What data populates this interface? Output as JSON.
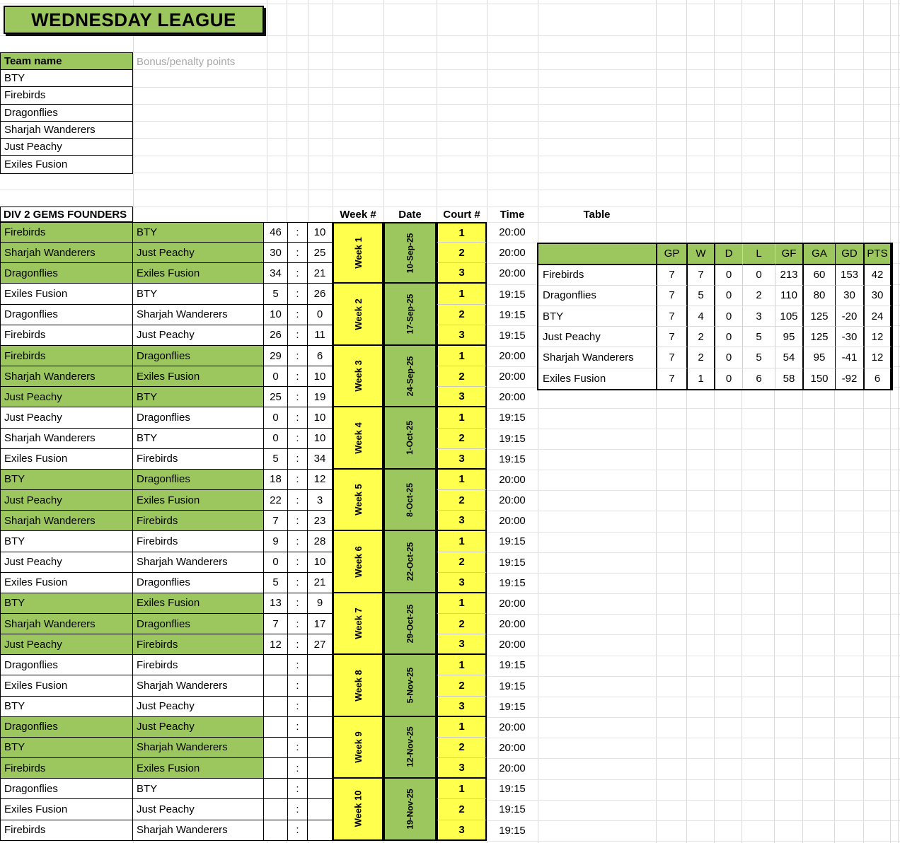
{
  "title": "WEDNESDAY LEAGUE",
  "teams_panel": {
    "header": "Team name",
    "bonus_label": "Bonus/penalty points",
    "teams": [
      "BTY",
      "Firebirds",
      "Dragonflies",
      "Sharjah Wanderers",
      "Just Peachy",
      "Exiles Fusion"
    ]
  },
  "division_header": "DIV 2 GEMS FOUNDERS",
  "schedule_headers": {
    "week": "Week #",
    "date": "Date",
    "court": "Court #",
    "time": "Time",
    "table": "Table"
  },
  "colon": ":",
  "weeks": [
    {
      "label": "Week 1",
      "date": "10-Sep-25",
      "green": true,
      "matches": [
        {
          "home": "Firebirds",
          "away": "BTY",
          "home_score": "46",
          "away_score": "10",
          "court": "1",
          "time": "20:00"
        },
        {
          "home": "Sharjah Wanderers",
          "away": "Just Peachy",
          "home_score": "30",
          "away_score": "25",
          "court": "2",
          "time": "20:00"
        },
        {
          "home": "Dragonflies",
          "away": "Exiles Fusion",
          "home_score": "34",
          "away_score": "21",
          "court": "3",
          "time": "20:00"
        }
      ]
    },
    {
      "label": "Week 2",
      "date": "17-Sep-25",
      "green": false,
      "matches": [
        {
          "home": "Exiles Fusion",
          "away": "BTY",
          "home_score": "5",
          "away_score": "26",
          "court": "1",
          "time": "19:15"
        },
        {
          "home": "Dragonflies",
          "away": "Sharjah Wanderers",
          "home_score": "10",
          "away_score": "0",
          "court": "2",
          "time": "19:15"
        },
        {
          "home": "Firebirds",
          "away": "Just Peachy",
          "home_score": "26",
          "away_score": "11",
          "court": "3",
          "time": "19:15"
        }
      ]
    },
    {
      "label": "Week 3",
      "date": "24-Sep-25",
      "green": true,
      "matches": [
        {
          "home": "Firebirds",
          "away": "Dragonflies",
          "home_score": "29",
          "away_score": "6",
          "court": "1",
          "time": "20:00"
        },
        {
          "home": "Sharjah Wanderers",
          "away": "Exiles Fusion",
          "home_score": "0",
          "away_score": "10",
          "court": "2",
          "time": "20:00"
        },
        {
          "home": "Just Peachy",
          "away": "BTY",
          "home_score": "25",
          "away_score": "19",
          "court": "3",
          "time": "20:00"
        }
      ]
    },
    {
      "label": "Week 4",
      "date": "1-Oct-25",
      "green": false,
      "matches": [
        {
          "home": "Just Peachy",
          "away": "Dragonflies",
          "home_score": "0",
          "away_score": "10",
          "court": "1",
          "time": "19:15"
        },
        {
          "home": "Sharjah Wanderers",
          "away": "BTY",
          "home_score": "0",
          "away_score": "10",
          "court": "2",
          "time": "19:15"
        },
        {
          "home": "Exiles Fusion",
          "away": "Firebirds",
          "home_score": "5",
          "away_score": "34",
          "court": "3",
          "time": "19:15"
        }
      ]
    },
    {
      "label": "Week 5",
      "date": "8-Oct-25",
      "green": true,
      "matches": [
        {
          "home": "BTY",
          "away": "Dragonflies",
          "home_score": "18",
          "away_score": "12",
          "court": "1",
          "time": "20:00"
        },
        {
          "home": "Just Peachy",
          "away": "Exiles Fusion",
          "home_score": "22",
          "away_score": "3",
          "court": "2",
          "time": "20:00"
        },
        {
          "home": "Sharjah Wanderers",
          "away": "Firebirds",
          "home_score": "7",
          "away_score": "23",
          "court": "3",
          "time": "20:00"
        }
      ]
    },
    {
      "label": "Week 6",
      "date": "22-Oct-25",
      "green": false,
      "matches": [
        {
          "home": "BTY",
          "away": "Firebirds",
          "home_score": "9",
          "away_score": "28",
          "court": "1",
          "time": "19:15"
        },
        {
          "home": "Just Peachy",
          "away": "Sharjah Wanderers",
          "home_score": "0",
          "away_score": "10",
          "court": "2",
          "time": "19:15"
        },
        {
          "home": "Exiles Fusion",
          "away": "Dragonflies",
          "home_score": "5",
          "away_score": "21",
          "court": "3",
          "time": "19:15"
        }
      ]
    },
    {
      "label": "Week 7",
      "date": "29-Oct-25",
      "green": true,
      "matches": [
        {
          "home": "BTY",
          "away": "Exiles Fusion",
          "home_score": "13",
          "away_score": "9",
          "court": "1",
          "time": "20:00"
        },
        {
          "home": "Sharjah Wanderers",
          "away": "Dragonflies",
          "home_score": "7",
          "away_score": "17",
          "court": "2",
          "time": "20:00"
        },
        {
          "home": "Just Peachy",
          "away": "Firebirds",
          "home_score": "12",
          "away_score": "27",
          "court": "3",
          "time": "20:00"
        }
      ]
    },
    {
      "label": "Week 8",
      "date": "5-Nov-25",
      "green": false,
      "matches": [
        {
          "home": "Dragonflies",
          "away": "Firebirds",
          "home_score": "",
          "away_score": "",
          "court": "1",
          "time": "19:15"
        },
        {
          "home": "Exiles Fusion",
          "away": "Sharjah Wanderers",
          "home_score": "",
          "away_score": "",
          "court": "2",
          "time": "19:15"
        },
        {
          "home": "BTY",
          "away": "Just Peachy",
          "home_score": "",
          "away_score": "",
          "court": "3",
          "time": "19:15"
        }
      ]
    },
    {
      "label": "Week 9",
      "date": "12-Nov-25",
      "green": true,
      "matches": [
        {
          "home": "Dragonflies",
          "away": "Just Peachy",
          "home_score": "",
          "away_score": "",
          "court": "1",
          "time": "20:00"
        },
        {
          "home": "BTY",
          "away": "Sharjah Wanderers",
          "home_score": "",
          "away_score": "",
          "court": "2",
          "time": "20:00"
        },
        {
          "home": "Firebirds",
          "away": "Exiles Fusion",
          "home_score": "",
          "away_score": "",
          "court": "3",
          "time": "20:00"
        }
      ]
    },
    {
      "label": "Week 10",
      "date": "19-Nov-25",
      "green": false,
      "matches": [
        {
          "home": "Dragonflies",
          "away": "BTY",
          "home_score": "",
          "away_score": "",
          "court": "1",
          "time": "19:15"
        },
        {
          "home": "Exiles Fusion",
          "away": "Just Peachy",
          "home_score": "",
          "away_score": "",
          "court": "2",
          "time": "19:15"
        },
        {
          "home": "Firebirds",
          "away": "Sharjah Wanderers",
          "home_score": "",
          "away_score": "",
          "court": "3",
          "time": "19:15"
        }
      ]
    }
  ],
  "standings": {
    "title": "Table",
    "columns": [
      "GP",
      "W",
      "D",
      "L",
      "GF",
      "GA",
      "GD",
      "PTS"
    ],
    "rows": [
      {
        "team": "Firebirds",
        "values": [
          "7",
          "7",
          "0",
          "0",
          "213",
          "60",
          "153",
          "42"
        ]
      },
      {
        "team": "Dragonflies",
        "values": [
          "7",
          "5",
          "0",
          "2",
          "110",
          "80",
          "30",
          "30"
        ]
      },
      {
        "team": "BTY",
        "values": [
          "7",
          "4",
          "0",
          "3",
          "105",
          "125",
          "-20",
          "24"
        ]
      },
      {
        "team": "Just Peachy",
        "values": [
          "7",
          "2",
          "0",
          "5",
          "95",
          "125",
          "-30",
          "12"
        ]
      },
      {
        "team": "Sharjah Wanderers",
        "values": [
          "7",
          "2",
          "0",
          "5",
          "54",
          "95",
          "-41",
          "12"
        ]
      },
      {
        "team": "Exiles Fusion",
        "values": [
          "7",
          "1",
          "0",
          "6",
          "58",
          "150",
          "-92",
          "6"
        ]
      }
    ]
  },
  "colors": {
    "green": "#9CC75E",
    "yellow": "#FFFF4E",
    "muted_text": "#A8A8A8"
  }
}
